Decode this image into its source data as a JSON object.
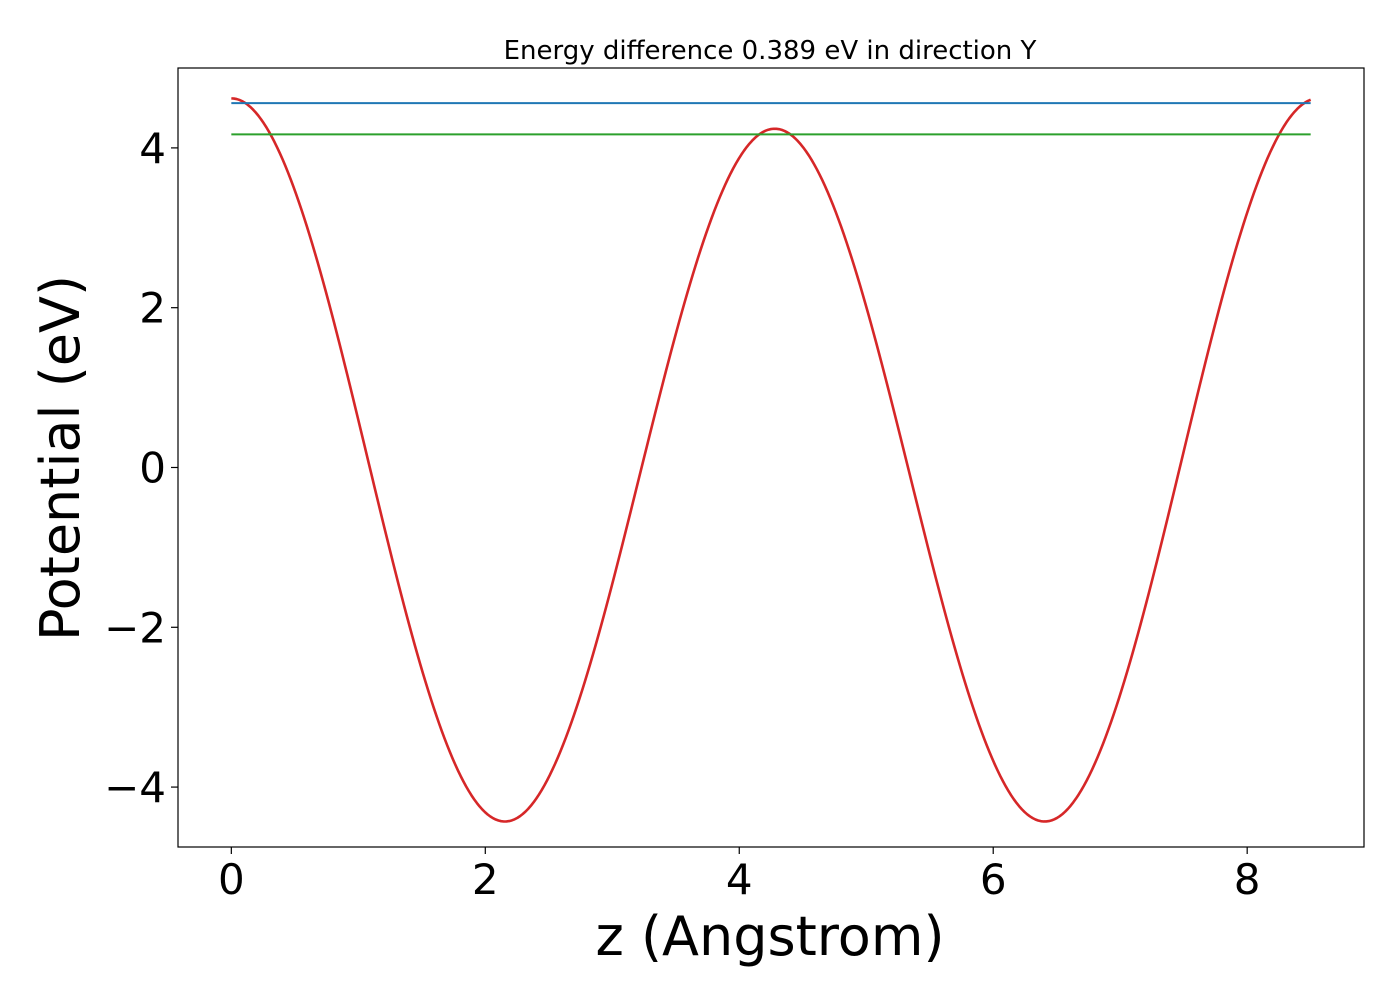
{
  "chart_data": {
    "type": "line",
    "title": "Energy difference 0.389 eV in direction Y",
    "xlabel": "z (Angstrom)",
    "ylabel": "Potential (eV)",
    "xlim": [
      -0.42,
      8.92
    ],
    "ylim": [
      -4.75,
      5.0
    ],
    "x_ticks": [
      0,
      2,
      4,
      6,
      8
    ],
    "x_tick_labels": [
      "0",
      "2",
      "4",
      "6",
      "8"
    ],
    "y_ticks": [
      -4,
      -2,
      0,
      2,
      4
    ],
    "y_tick_labels": [
      "−4",
      "−2",
      "0",
      "2",
      "4"
    ],
    "grid": false,
    "series": [
      {
        "style": "solid",
        "color": "#d62728",
        "model": "average of two cosine wells",
        "x_range": [
          0,
          8.5
        ],
        "mean": 0.0,
        "amplitude_a": 4.43,
        "period_a": 4.28,
        "amplitude_b": 0.19,
        "period_b": 8.56,
        "peak_values": [
          4.55,
          4.27,
          4.55,
          4.27,
          4.5
        ],
        "trough_values": [
          -4.28,
          -4.28,
          -4.28,
          -4.28
        ]
      },
      {
        "style": "hline",
        "color": "#1f77b4",
        "y": 4.56,
        "x_range": [
          0,
          8.5
        ]
      },
      {
        "style": "hline",
        "color": "#2ca02c",
        "y": 4.17,
        "x_range": [
          0,
          8.5
        ]
      }
    ]
  }
}
